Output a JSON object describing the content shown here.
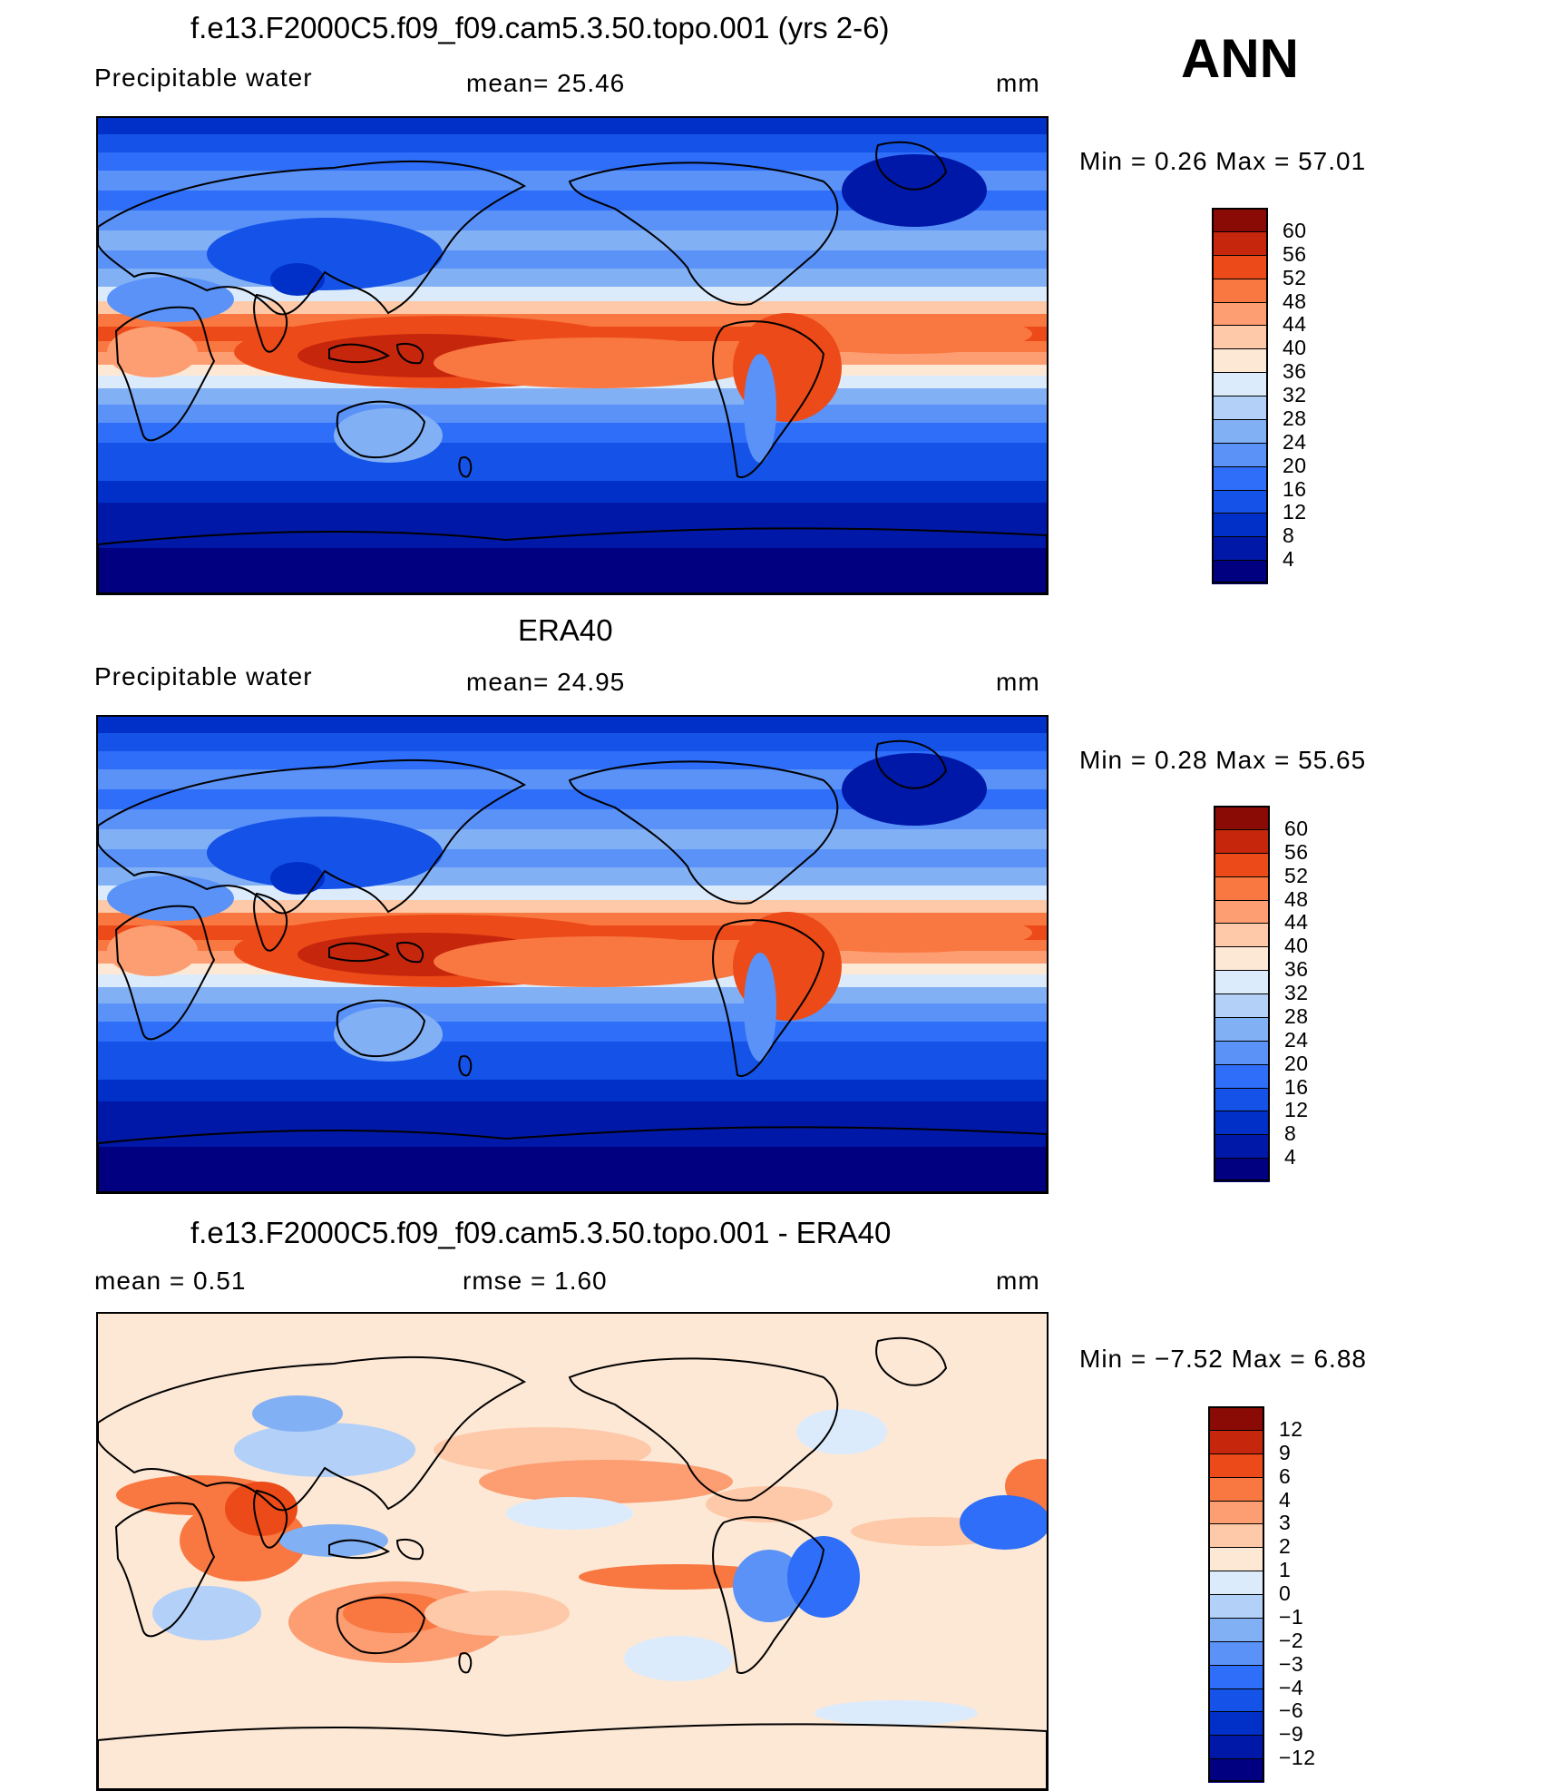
{
  "season": "ANN",
  "colors": {
    "abs": [
      "#000080",
      "#0018a8",
      "#0030c8",
      "#1452e8",
      "#2e6ef8",
      "#5a92f8",
      "#82b0f5",
      "#b2d0f8",
      "#dcebfb",
      "#fde8d6",
      "#fdc9a8",
      "#fc9d72",
      "#f97740",
      "#ec4a18",
      "#c6260c",
      "#8a0a05"
    ],
    "diff": [
      "#000080",
      "#0018a8",
      "#0030c8",
      "#1452e8",
      "#2e6ef8",
      "#5a92f8",
      "#82b0f5",
      "#b2d0f8",
      "#dcebfb",
      "#fde8d6",
      "#fdc9a8",
      "#fc9d72",
      "#f97740",
      "#ec4a18",
      "#c6260c",
      "#8a0a05"
    ],
    "land_outline": "#000000"
  },
  "panels": [
    {
      "title": "f.e13.F2000C5.f09_f09.cam5.3.50.topo.001 (yrs 2-6)",
      "left_label": "Precipitable  water",
      "mid_label": "mean=   25.46",
      "unit": "mm",
      "minmax": "Min  =     0.26  Max  =    57.01",
      "levels": [
        "60",
        "56",
        "52",
        "48",
        "44",
        "40",
        "36",
        "32",
        "28",
        "24",
        "20",
        "16",
        "12",
        "8",
        "4"
      ],
      "fields": {
        "mean_mm": 25.46,
        "min_mm": 0.26,
        "max_mm": 57.01
      }
    },
    {
      "title": "ERA40",
      "left_label": "Precipitable  water",
      "mid_label": "mean=   24.95",
      "unit": "mm",
      "minmax": "Min  =     0.28  Max  =    55.65",
      "levels": [
        "60",
        "56",
        "52",
        "48",
        "44",
        "40",
        "36",
        "32",
        "28",
        "24",
        "20",
        "16",
        "12",
        "8",
        "4"
      ],
      "fields": {
        "mean_mm": 24.95,
        "min_mm": 0.28,
        "max_mm": 55.65
      }
    },
    {
      "title": "f.e13.F2000C5.f09_f09.cam5.3.50.topo.001 - ERA40",
      "left_label": "mean  =     0.51",
      "mid_label": "rmse  =     1.60",
      "unit": "mm",
      "minmax": "Min  =   −7.52  Max  =      6.88",
      "levels": [
        "12",
        "9",
        "6",
        "4",
        "3",
        "2",
        "1",
        "0",
        "−1",
        "−2",
        "−3",
        "−4",
        "−6",
        "−9",
        "−12"
      ],
      "fields": {
        "mean_mm": 0.51,
        "rmse_mm": 1.6,
        "min_mm": -7.52,
        "max_mm": 6.88
      }
    }
  ]
}
